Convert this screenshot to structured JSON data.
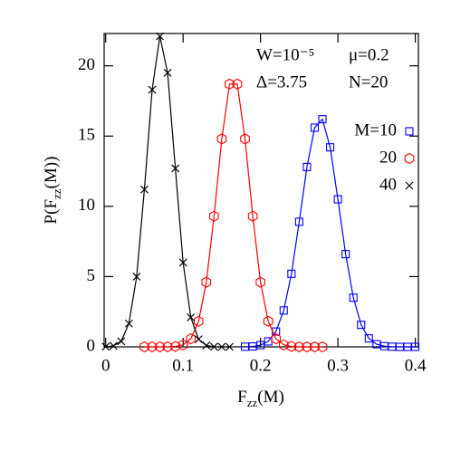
{
  "chart_data": {
    "type": "scatter-line",
    "x_label": [
      "F",
      "zz",
      "(M)"
    ],
    "y_label": [
      "P(F",
      "zz",
      "(M))"
    ],
    "annotations": [
      "W=10⁻⁵",
      "μ=0.2",
      "Δ=3.75",
      "N=20"
    ],
    "xlim": [
      -0.002,
      0.404
    ],
    "ylim": [
      0,
      22.3
    ],
    "xticks": [
      0,
      0.1,
      0.2,
      0.3,
      0.4
    ],
    "yticks": [
      0,
      5,
      10,
      15,
      20
    ],
    "series": [
      {
        "name": "M=10",
        "color": "#0000ff",
        "marker": "square",
        "x": [
          0.18,
          0.19,
          0.2,
          0.21,
          0.22,
          0.23,
          0.24,
          0.25,
          0.26,
          0.27,
          0.28,
          0.29,
          0.3,
          0.31,
          0.32,
          0.33,
          0.34,
          0.35,
          0.36,
          0.37,
          0.38,
          0.39,
          0.4
        ],
        "values": [
          0.01,
          0.03,
          0.12,
          0.39,
          1.09,
          2.59,
          5.2,
          8.9,
          12.8,
          15.6,
          16.2,
          14.2,
          10.5,
          6.6,
          3.5,
          1.57,
          0.6,
          0.19,
          0.05,
          0.01,
          0,
          0,
          0
        ]
      },
      {
        "name": "20",
        "color": "#ff0000",
        "marker": "hexagon",
        "x": [
          0.05,
          0.06,
          0.07,
          0.08,
          0.09,
          0.1,
          0.11,
          0.12,
          0.13,
          0.14,
          0.15,
          0.16,
          0.17,
          0.18,
          0.19,
          0.2,
          0.21,
          0.22,
          0.23,
          0.24,
          0.25,
          0.26,
          0.27,
          0.28
        ],
        "values": [
          0,
          0,
          0,
          0,
          0.03,
          0.14,
          0.57,
          1.82,
          4.6,
          9.3,
          14.8,
          18.7,
          18.7,
          14.8,
          9.3,
          4.6,
          1.82,
          0.57,
          0.14,
          0.03,
          0,
          0,
          0,
          0
        ]
      },
      {
        "name": "40",
        "color": "#000000",
        "marker": "cross",
        "x": [
          0,
          0.01,
          0.02,
          0.03,
          0.04,
          0.05,
          0.06,
          0.07,
          0.08,
          0.09,
          0.1,
          0.11,
          0.12,
          0.13,
          0.14,
          0.15,
          0.16
        ],
        "values": [
          0.01,
          0.07,
          0.4,
          1.66,
          5.0,
          11.2,
          18.3,
          22.1,
          19.5,
          12.7,
          6.0,
          2.1,
          0.54,
          0.1,
          0.01,
          0,
          0
        ]
      }
    ]
  }
}
